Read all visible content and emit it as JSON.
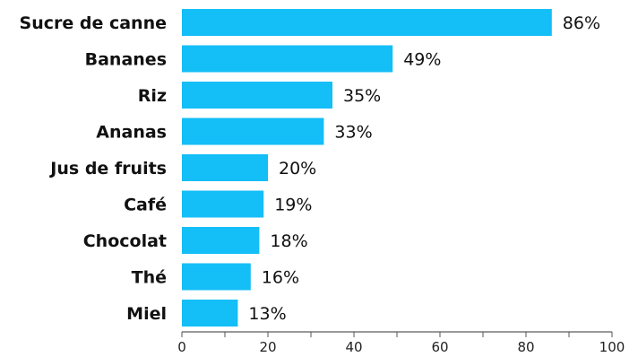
{
  "chart_data": {
    "type": "bar",
    "orientation": "horizontal",
    "categories": [
      "Sucre de canne",
      "Bananes",
      "Riz",
      "Ananas",
      "Jus de fruits",
      "Café",
      "Chocolat",
      "Thé",
      "Miel"
    ],
    "values": [
      86,
      49,
      35,
      33,
      20,
      19,
      18,
      16,
      13
    ],
    "value_labels": [
      "86%",
      "49%",
      "35%",
      "33%",
      "20%",
      "19%",
      "18%",
      "16%",
      "13%"
    ],
    "xlim": [
      0,
      100
    ],
    "x_ticks": [
      0,
      20,
      40,
      60,
      80,
      100
    ],
    "title": "",
    "xlabel": "",
    "ylabel": "",
    "grid": false,
    "legend": "none",
    "bar_color": "#14bef7"
  }
}
